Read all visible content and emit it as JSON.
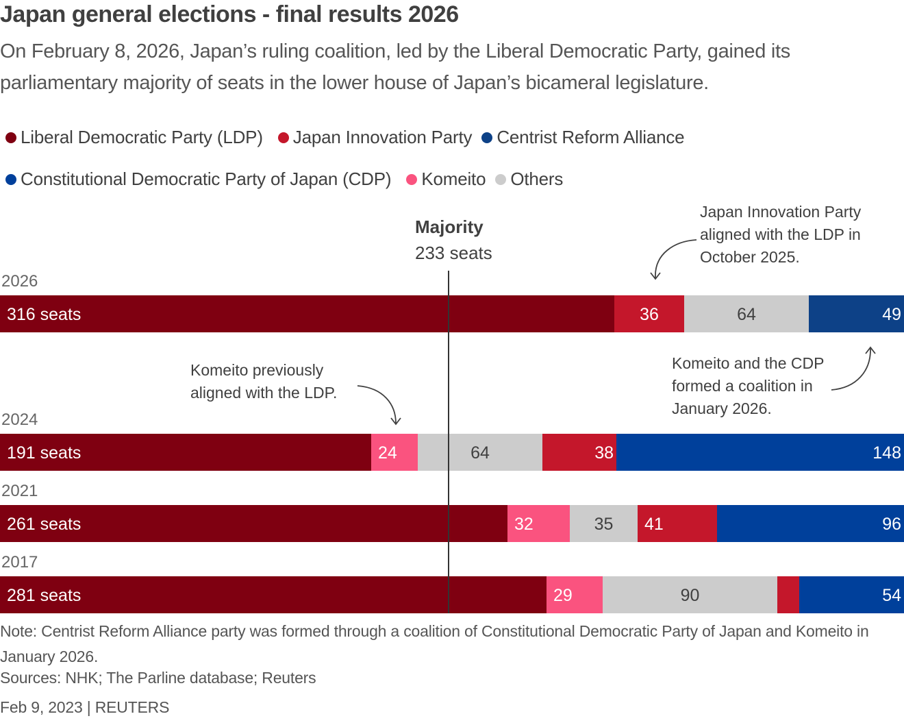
{
  "title": "Japan general elections - final results 2026",
  "subtitle": "On February 8, 2026, Japan’s ruling coalition, led by the Liberal Democratic Party, gained its parliamentary majority of seats in the lower house of Japan’s bicameral legislature.",
  "legend": {
    "rows": [
      [
        {
          "key": "ldp",
          "label": "Liberal Democratic Party (LDP)",
          "color": "#7f0011"
        },
        {
          "key": "jip",
          "label": "Japan Innovation Party",
          "color": "#c4172b"
        },
        {
          "key": "cra",
          "label": "Centrist Reform Alliance",
          "color": "#0d4187"
        }
      ],
      [
        {
          "key": "cdp",
          "label": "Constitutional Democratic Party of Japan (CDP)",
          "color": "#00409b"
        },
        {
          "key": "komeito",
          "label": "Komeito",
          "color": "#fa537f"
        },
        {
          "key": "others",
          "label": "Others",
          "color": "#cccccc"
        }
      ]
    ]
  },
  "chart_data": {
    "type": "bar",
    "orientation": "horizontal-stacked",
    "title": "Japan general elections - final results 2026",
    "total_seats": 465,
    "xlim": [
      0,
      465
    ],
    "reference_line": {
      "label": "Majority",
      "value_label": "233 seats",
      "value": 233
    },
    "series_colors": {
      "ldp": "#7f0011",
      "jip": "#c4172b",
      "cra": "#0d4187",
      "cdp": "#00409b",
      "komeito": "#fa537f",
      "others": "#cccccc"
    },
    "rows": [
      {
        "year": "2026",
        "segments": [
          {
            "party": "ldp",
            "value": 316,
            "label": "316 seats",
            "align": "start"
          },
          {
            "party": "jip",
            "value": 36,
            "label": "36",
            "align": "middle"
          },
          {
            "party": "others",
            "value": 64,
            "label": "64",
            "align": "middle"
          },
          {
            "party": "cra",
            "value": 49,
            "label": "49",
            "align": "end"
          }
        ]
      },
      {
        "year": "2024",
        "segments": [
          {
            "party": "ldp",
            "value": 191,
            "label": "191 seats",
            "align": "start"
          },
          {
            "party": "komeito",
            "value": 24,
            "label": "24",
            "align": "start"
          },
          {
            "party": "others",
            "value": 64,
            "label": "64",
            "align": "middle"
          },
          {
            "party": "jip",
            "value": 38,
            "label": "38",
            "align": "end"
          },
          {
            "party": "cdp",
            "value": 148,
            "label": "148",
            "align": "end"
          }
        ]
      },
      {
        "year": "2021",
        "segments": [
          {
            "party": "ldp",
            "value": 261,
            "label": "261 seats",
            "align": "start"
          },
          {
            "party": "komeito",
            "value": 32,
            "label": "32",
            "align": "start"
          },
          {
            "party": "others",
            "value": 35,
            "label": "35",
            "align": "middle"
          },
          {
            "party": "jip",
            "value": 41,
            "label": "41",
            "align": "start"
          },
          {
            "party": "cdp",
            "value": 96,
            "label": "96",
            "align": "end"
          }
        ]
      },
      {
        "year": "2017",
        "segments": [
          {
            "party": "ldp",
            "value": 281,
            "label": "281 seats",
            "align": "start"
          },
          {
            "party": "komeito",
            "value": 29,
            "label": "29",
            "align": "start"
          },
          {
            "party": "others",
            "value": 90,
            "label": "90",
            "align": "middle"
          },
          {
            "party": "jip",
            "value": 11,
            "label": "",
            "align": "middle"
          },
          {
            "party": "cdp",
            "value": 54,
            "label": "54",
            "align": "end"
          }
        ]
      }
    ],
    "annotations": [
      {
        "id": "jip-2025",
        "lines": [
          "Japan Innovation Party",
          "aligned with the LDP in",
          "October 2025."
        ]
      },
      {
        "id": "komeito-prev",
        "lines": [
          "Komeito previously",
          "aligned with the LDP."
        ]
      },
      {
        "id": "cra-2026",
        "lines": [
          "Komeito and the CDP",
          "formed a coalition in",
          "January 2026."
        ]
      }
    ]
  },
  "footer": {
    "note": "Note: Centrist Reform Alliance party was formed through a coalition of Constitutional Democratic Party of Japan and Komeito in January 2026.",
    "sources": "Sources: NHK; The Parline database; Reuters",
    "credit": "Feb 9, 2023 | REUTERS"
  }
}
